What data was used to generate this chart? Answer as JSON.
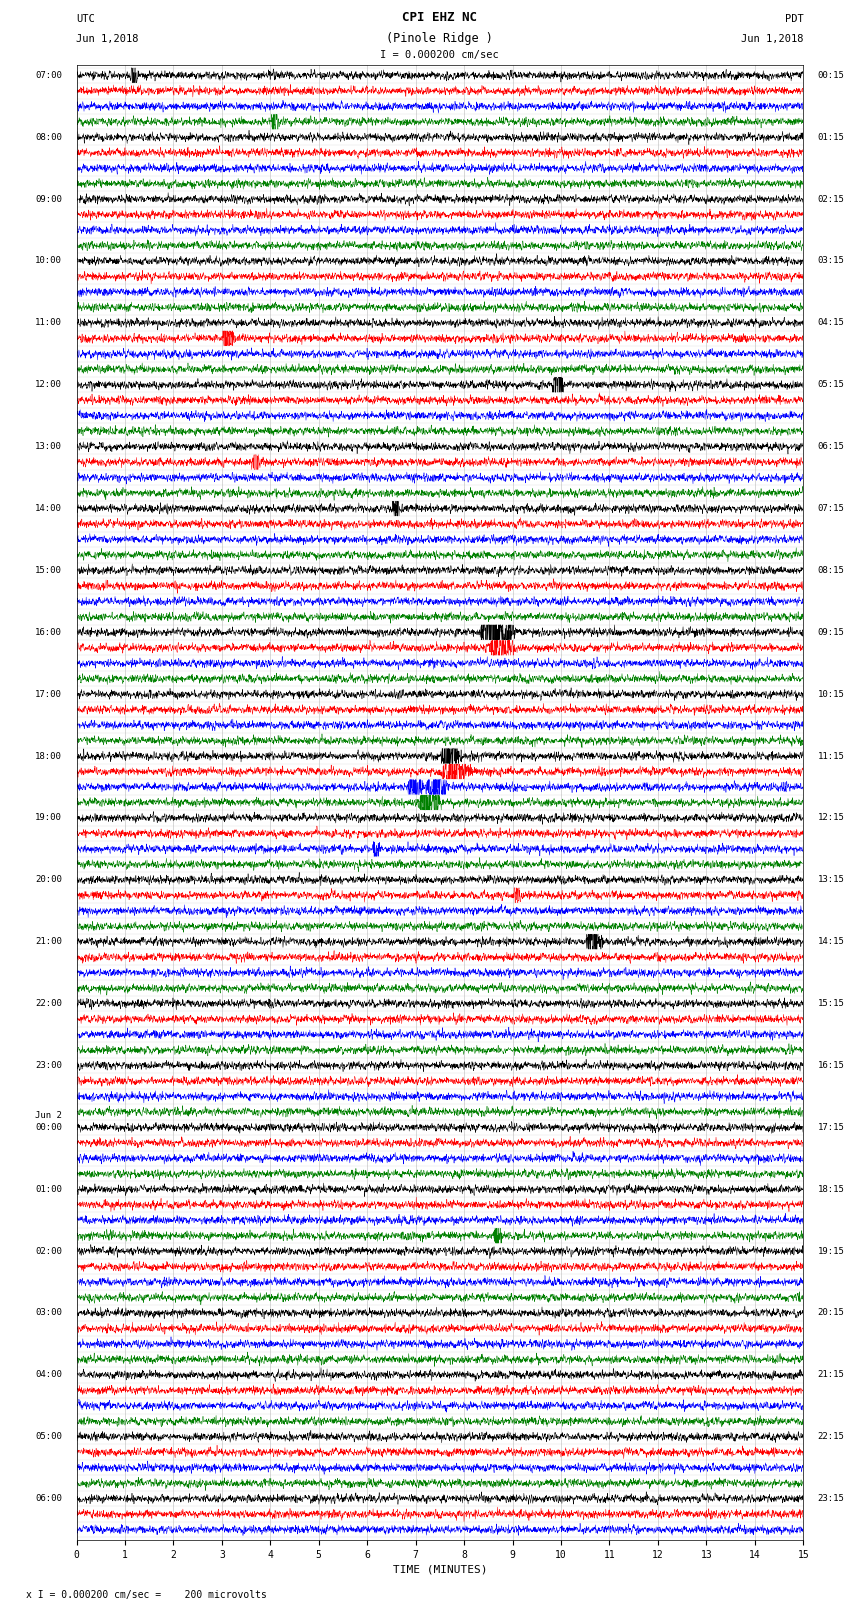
{
  "title_line1": "CPI EHZ NC",
  "title_line2": "(Pinole Ridge )",
  "scale_label": "I = 0.000200 cm/sec",
  "left_header1": "UTC",
  "left_header2": "Jun 1,2018",
  "right_header1": "PDT",
  "right_header2": "Jun 1,2018",
  "xlabel": "TIME (MINUTES)",
  "footer": "x I = 0.000200 cm/sec =    200 microvolts",
  "utc_times": [
    "07:00",
    "",
    "",
    "",
    "08:00",
    "",
    "",
    "",
    "09:00",
    "",
    "",
    "",
    "10:00",
    "",
    "",
    "",
    "11:00",
    "",
    "",
    "",
    "12:00",
    "",
    "",
    "",
    "13:00",
    "",
    "",
    "",
    "14:00",
    "",
    "",
    "",
    "15:00",
    "",
    "",
    "",
    "16:00",
    "",
    "",
    "",
    "17:00",
    "",
    "",
    "",
    "18:00",
    "",
    "",
    "",
    "19:00",
    "",
    "",
    "",
    "20:00",
    "",
    "",
    "",
    "21:00",
    "",
    "",
    "",
    "22:00",
    "",
    "",
    "",
    "23:00",
    "",
    "",
    "",
    "",
    "",
    "",
    "",
    "01:00",
    "",
    "",
    "",
    "02:00",
    "",
    "",
    "",
    "03:00",
    "",
    "",
    "",
    "04:00",
    "",
    "",
    "",
    "05:00",
    "",
    "",
    "",
    "06:00",
    "",
    ""
  ],
  "pdt_times": [
    "00:15",
    "",
    "",
    "",
    "01:15",
    "",
    "",
    "",
    "02:15",
    "",
    "",
    "",
    "03:15",
    "",
    "",
    "",
    "04:15",
    "",
    "",
    "",
    "05:15",
    "",
    "",
    "",
    "06:15",
    "",
    "",
    "",
    "07:15",
    "",
    "",
    "",
    "08:15",
    "",
    "",
    "",
    "09:15",
    "",
    "",
    "",
    "10:15",
    "",
    "",
    "",
    "11:15",
    "",
    "",
    "",
    "12:15",
    "",
    "",
    "",
    "13:15",
    "",
    "",
    "",
    "14:15",
    "",
    "",
    "",
    "15:15",
    "",
    "",
    "",
    "16:15",
    "",
    "",
    "",
    "17:15",
    "",
    "",
    "",
    "18:15",
    "",
    "",
    "",
    "19:15",
    "",
    "",
    "",
    "20:15",
    "",
    "",
    "",
    "21:15",
    "",
    "",
    "",
    "22:15",
    "",
    "",
    "",
    "23:15",
    "",
    ""
  ],
  "trace_colors": [
    "black",
    "red",
    "blue",
    "green"
  ],
  "n_rows": 95,
  "n_minutes": 15,
  "samples_per_minute": 200,
  "amplitude_scale": 0.12,
  "background_color": "white",
  "grid_color": "#aaaaaa",
  "trace_linewidth": 0.35,
  "fig_width": 8.5,
  "fig_height": 16.13,
  "dpi": 100,
  "jun2_row": 68
}
